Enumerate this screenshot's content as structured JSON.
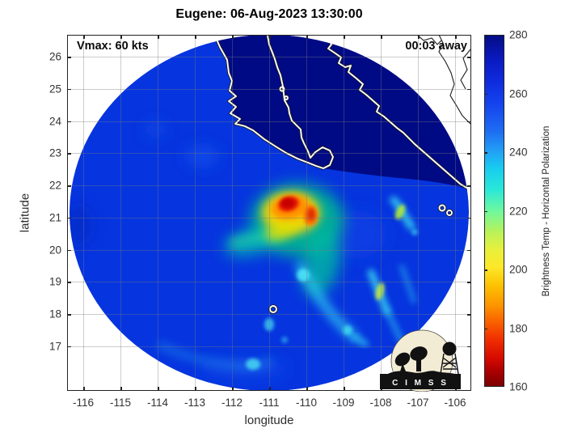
{
  "title": "Eugene: 06-Aug-2023 13:30:00",
  "overlay": {
    "vmax_label": "Vmax: 60 kts",
    "eta_label": "00:03 away"
  },
  "axes": {
    "xlabel": "longitude",
    "ylabel": "latitude",
    "xticks": [
      -116,
      -115,
      -114,
      -113,
      -112,
      -111,
      -110,
      -109,
      -108,
      -107,
      -106
    ],
    "yticks": [
      26,
      25,
      24,
      23,
      22,
      21,
      20,
      19,
      18,
      17
    ]
  },
  "colorbar": {
    "label": "Brightness Temp - Horizontal Polarization",
    "ticks": [
      280,
      260,
      240,
      220,
      200,
      180,
      160
    ],
    "min": 160,
    "max": 280
  },
  "logo": {
    "caption": "C I M S S"
  },
  "chart_data": {
    "type": "heatmap",
    "title": "Eugene: 06-Aug-2023 13:30:00",
    "xlabel": "longitude",
    "ylabel": "latitude",
    "xlim": [
      -116.45,
      -105.55
    ],
    "ylim": [
      15.6,
      26.7
    ],
    "grid": true,
    "colorbar": {
      "label": "Brightness Temp - Horizontal Polarization",
      "range": [
        160,
        280
      ],
      "tick_step": 20,
      "colormap": "jet-reversed (280=dark blue, 160=dark red)"
    },
    "storm": {
      "name": "Eugene",
      "timestamp": "06-Aug-2023 13:30:00",
      "vmax_kts": 60,
      "obs_offset": "00:03 away"
    },
    "swath": {
      "shape": "circular",
      "center_lon": -111.0,
      "center_lat": 21.1,
      "radius_deg": 5.4
    },
    "features": [
      {
        "name": "deep-convection-core",
        "lon": -110.55,
        "lat": 21.5,
        "approx_tb_K": 168
      },
      {
        "name": "secondary-cold-cell",
        "lon": -110.0,
        "lat": 21.3,
        "approx_tb_K": 182
      },
      {
        "name": "yellow-convective-ring",
        "lon": -110.5,
        "lat": 21.3,
        "approx_tb_K": 205
      },
      {
        "name": "west-rainband-arm",
        "lon": -112.0,
        "lat": 20.4,
        "approx_tb_K": 232
      },
      {
        "name": "south-spiral-band",
        "lon": -109.9,
        "lat": 19.3,
        "approx_tb_K": 235
      },
      {
        "name": "east-spiral-band",
        "lon": -108.0,
        "lat": 21.0,
        "approx_tb_K": 228
      },
      {
        "name": "southeast-streaks",
        "lon": -108.3,
        "lat": 18.6,
        "approx_tb_K": 238
      },
      {
        "name": "outer-band-southwest",
        "lon": -112.8,
        "lat": 17.4,
        "approx_tb_K": 244
      },
      {
        "name": "baja-california-peninsula-land",
        "approx_tb_K": 278
      },
      {
        "name": "gulf-of-california",
        "approx_tb_K": 276
      },
      {
        "name": "mainland-mexico-coast",
        "approx_tb_K": 278
      },
      {
        "name": "ocean-background",
        "approx_tb_K": 253
      },
      {
        "name": "small-island-outline",
        "lon": -110.9,
        "lat": 18.2
      },
      {
        "name": "small-island-outline",
        "lon": -106.4,
        "lat": 21.3
      }
    ]
  }
}
